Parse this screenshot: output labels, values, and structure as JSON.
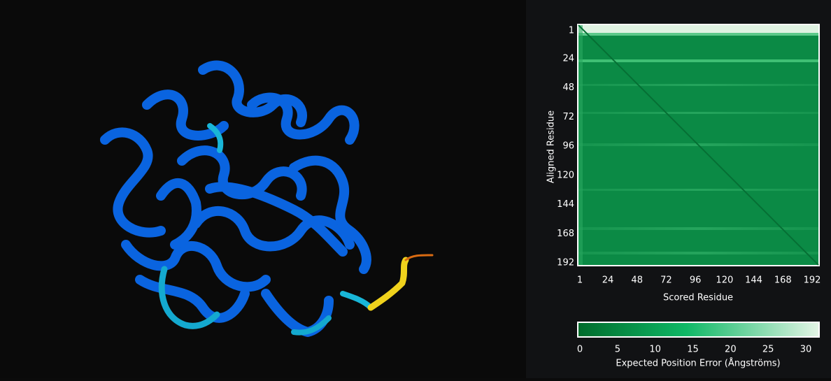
{
  "pae": {
    "y_axis_label": "Aligned Residue",
    "x_axis_label": "Scored Residue",
    "y_ticks": [
      1,
      24,
      48,
      72,
      96,
      120,
      144,
      168,
      192
    ],
    "x_ticks": [
      1,
      24,
      48,
      72,
      96,
      120,
      144,
      168,
      192
    ],
    "colorbar": {
      "label": "Expected Position Error (Ångströms)",
      "ticks": [
        0,
        5,
        10,
        15,
        20,
        25,
        30
      ]
    }
  }
}
